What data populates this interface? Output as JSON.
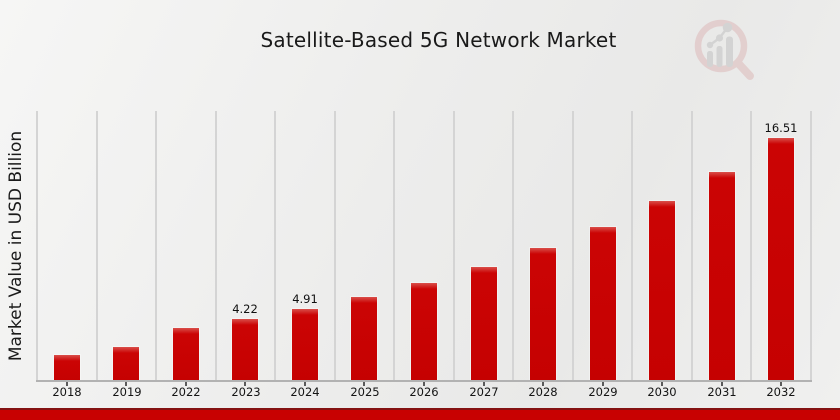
{
  "chart_data": {
    "type": "bar",
    "title": "Satellite-Based 5G Network Market",
    "ylabel": "Market Value in USD Billion",
    "xlabel": "",
    "categories": [
      "2018",
      "2019",
      "2022",
      "2023",
      "2024",
      "2025",
      "2026",
      "2027",
      "2028",
      "2029",
      "2030",
      "2031",
      "2032"
    ],
    "values": [
      1.79,
      2.31,
      3.62,
      4.22,
      4.91,
      5.72,
      6.67,
      7.73,
      9.01,
      10.48,
      12.25,
      14.2,
      16.51
    ],
    "data_labels": [
      "",
      "",
      "",
      "4.22",
      "4.91",
      "",
      "",
      "",
      "",
      "",
      "",
      "",
      "16.51"
    ],
    "ylim": [
      0,
      18.35
    ],
    "grid": "vertical-category-separators",
    "legend": null,
    "units": "USD Billion",
    "bar_color": "#c50101",
    "gridline_color": "#d4d4d4",
    "axis_color": "#b2b2b2",
    "text_color": "#1a1a1a"
  },
  "footer": {
    "strip_color": "#c80101",
    "strip_border_color": "#841212"
  },
  "logo": {
    "name": "market-research-magnifier-logo",
    "ring_color": "#ddb9b9",
    "bars_color": "#c2c2c2"
  }
}
